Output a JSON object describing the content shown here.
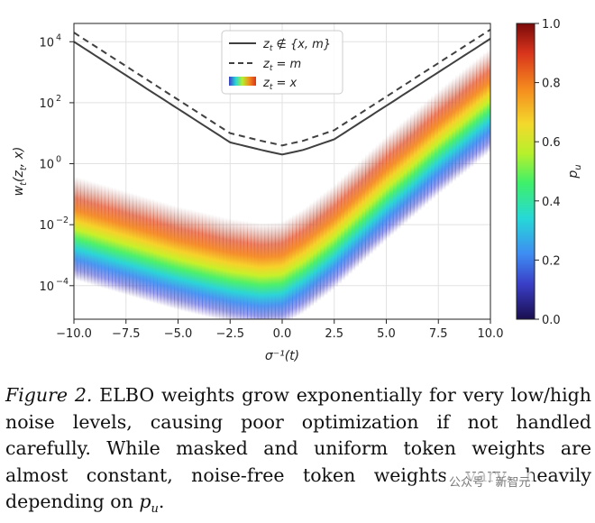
{
  "chart_data": {
    "type": "line",
    "xlabel": "σ⁻¹(t)",
    "ylabel": "w_t(z_t, x)",
    "xlim": [
      -10.0,
      10.0
    ],
    "ylim_log10": [
      -5.1,
      4.6
    ],
    "x_ticks": [
      -10.0,
      -7.5,
      -5.0,
      -2.5,
      0.0,
      2.5,
      5.0,
      7.5,
      10.0
    ],
    "x_tick_labels": [
      "−10.0",
      "−7.5",
      "−5.0",
      "−2.5",
      "0.0",
      "2.5",
      "5.0",
      "7.5",
      "10.0"
    ],
    "y_ticks_log10": [
      4,
      2,
      0,
      -2,
      -4
    ],
    "y_tick_labels": [
      {
        "base": "10",
        "exp": "4"
      },
      {
        "base": "10",
        "exp": "2"
      },
      {
        "base": "10",
        "exp": "0"
      },
      {
        "base": "10",
        "exp": "−2"
      },
      {
        "base": "10",
        "exp": "−4"
      }
    ],
    "grid": true,
    "legend_position": "top-center",
    "series": [
      {
        "name": "z_t ∉ {x, m}",
        "label_parts": [
          "z",
          "t",
          " ∉ {x, m}"
        ],
        "style": "solid",
        "color": "#404040",
        "x": [
          -10,
          -7.5,
          -5,
          -2.5,
          -1,
          0,
          1,
          2.5,
          5,
          7.5,
          10
        ],
        "log10_y": [
          4.0,
          2.9,
          1.8,
          0.7,
          0.45,
          0.3,
          0.45,
          0.8,
          1.9,
          3.0,
          4.1
        ]
      },
      {
        "name": "z_t = m",
        "label_parts": [
          "z",
          "t",
          " = m"
        ],
        "style": "dashed",
        "color": "#404040",
        "x": [
          -10,
          -7.5,
          -5,
          -2.5,
          -1,
          0,
          1,
          2.5,
          5,
          7.5,
          10
        ],
        "log10_y": [
          4.3,
          3.2,
          2.1,
          1.0,
          0.75,
          0.6,
          0.75,
          1.1,
          2.2,
          3.3,
          4.4
        ]
      },
      {
        "name": "z_t = x",
        "label_parts": [
          "z",
          "t",
          " = x"
        ],
        "style": "colored-band",
        "color_by": "p_u",
        "x": [
          -10,
          -7.5,
          -5,
          -2.5,
          -1,
          0,
          1,
          2.5,
          5,
          7.5,
          10
        ],
        "log10_y_center": [
          -2.8,
          -3.3,
          -3.8,
          -4.2,
          -4.35,
          -4.3,
          -3.9,
          -3.1,
          -1.5,
          0.0,
          1.4
        ]
      }
    ],
    "colorbar": {
      "label": "p_u",
      "label_parts": [
        "p",
        "u"
      ],
      "range": [
        0.0,
        1.0
      ],
      "ticks": [
        "0.0",
        "0.2",
        "0.4",
        "0.6",
        "0.8",
        "1.0"
      ]
    }
  },
  "caption": {
    "label": "Figure 2.",
    "text": "ELBO weights grow exponentially for very low/high noise levels, causing poor optimization if not handled carefully. While masked and uniform token weights are almost constant, noise-free token weights vary heavily depending on",
    "math_base": "p",
    "math_sub": "u",
    "end": "."
  },
  "watermark": "公众号 · 新智元"
}
